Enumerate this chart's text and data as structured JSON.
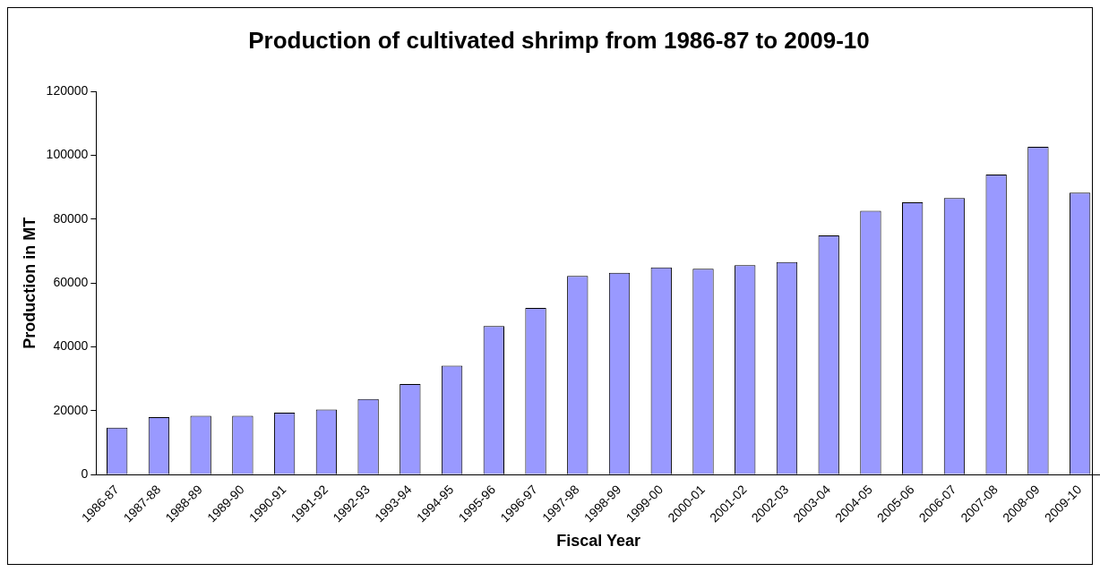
{
  "chart_data": {
    "type": "bar",
    "title": "Production of cultivated shrimp from 1986-87 to 2009-10",
    "xlabel": "Fiscal Year",
    "ylabel": "Production in MT",
    "categories": [
      "1986-87",
      "1987-88",
      "1988-89",
      "1989-90",
      "1990-91",
      "1991-92",
      "1992-93",
      "1993-94",
      "1994-95",
      "1995-96",
      "1996-97",
      "1997-98",
      "1998-99",
      "1999-00",
      "2000-01",
      "2001-02",
      "2002-03",
      "2003-04",
      "2004-05",
      "2005-06",
      "2006-07",
      "2007-08",
      "2008-09",
      "2009-10"
    ],
    "values": [
      14700,
      18000,
      18400,
      18400,
      19400,
      20400,
      23700,
      28400,
      34100,
      46500,
      52200,
      62200,
      63200,
      64900,
      64500,
      65600,
      66600,
      74900,
      82600,
      85300,
      86600,
      94000,
      102700,
      88300
    ],
    "color": "#9999ff",
    "ylim": [
      0,
      120000
    ],
    "yticks": [
      0,
      20000,
      40000,
      60000,
      80000,
      100000,
      120000
    ],
    "grid": false,
    "legend": false
  }
}
